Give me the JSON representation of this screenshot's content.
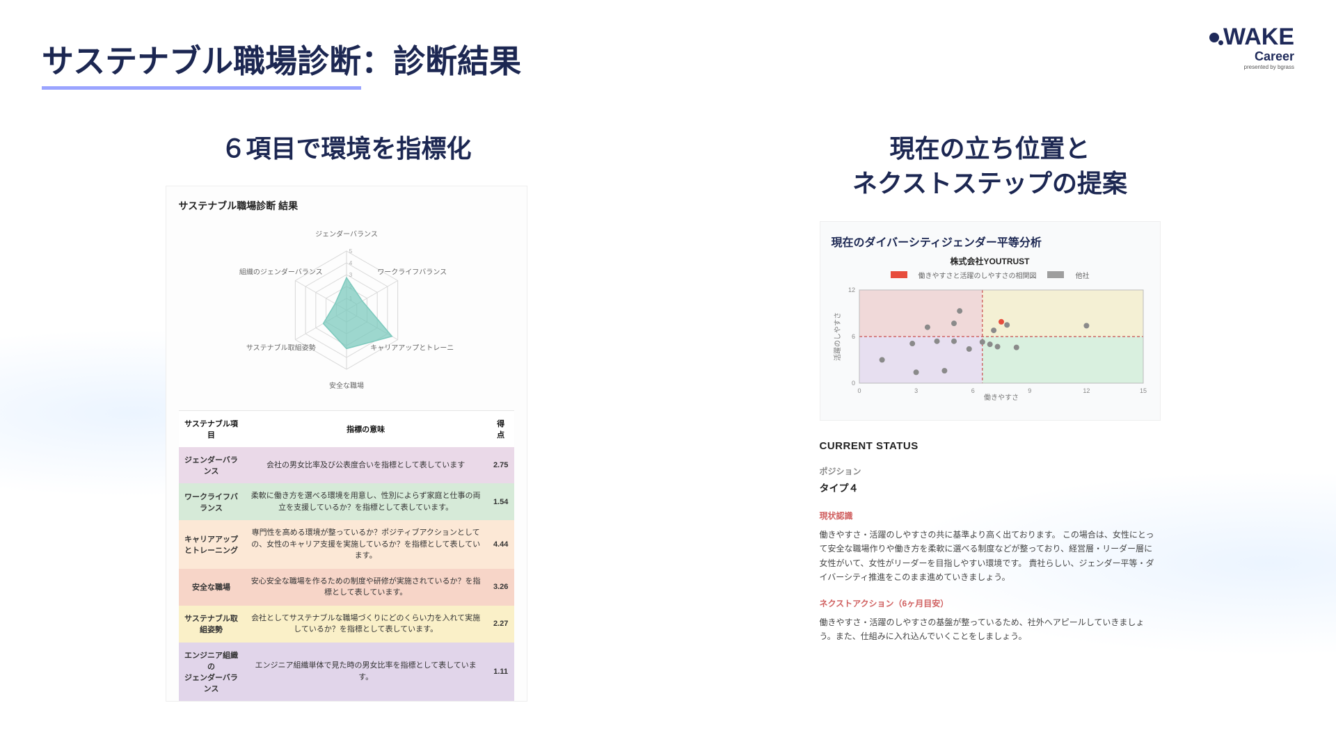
{
  "logo": {
    "main": "WAKE",
    "sub": "Career",
    "tiny": "presented by bgrass"
  },
  "title": {
    "highlight": "サステナブル職場診断",
    "rest": "：診断結果"
  },
  "left": {
    "heading": "６項目で環境を指標化",
    "card_title": "サステナブル職場診断 結果",
    "radar": {
      "axes": [
        "ジェンダーバランス",
        "ワークライフバランス",
        "キャリアアップとトレーニ",
        "安全な職場",
        "サステナブル取組姿勢",
        "組織のジェンダーバランス"
      ],
      "max": 5,
      "ticks": [
        1,
        2,
        3,
        4,
        5
      ],
      "values": [
        2.75,
        1.54,
        4.44,
        3.26,
        2.27,
        1.11
      ],
      "fill": "#7cc9bd",
      "fill_opacity": 0.75,
      "grid_color": "#d8d8d8",
      "label_color": "#666666"
    },
    "table": {
      "columns": [
        "サステナブル項目",
        "指標の意味",
        "得点"
      ],
      "rows": [
        {
          "name": "ジェンダーバランス",
          "desc": "会社の男女比率及び公表度合いを指標として表しています",
          "score": "2.75",
          "bg": "#ead9e8"
        },
        {
          "name": "ワークライフバランス",
          "desc": "柔軟に働き方を選べる環境を用意し、性別によらず家庭と仕事の両立を支援しているか？を指標として表しています。",
          "score": "1.54",
          "bg": "#d6ead8"
        },
        {
          "name": "キャリアアップとトレーニング",
          "desc": "専門性を高める環境が整っているか？ポジティブアクションとしての、女性のキャリア支援を実施しているか？を指標として表しています。",
          "score": "4.44",
          "bg": "#fce8d6"
        },
        {
          "name": "安全な職場",
          "desc": "安心安全な職場を作るための制度や研修が実施されているか？を指標として表しています。",
          "score": "3.26",
          "bg": "#f7d5c8"
        },
        {
          "name": "サステナブル取組姿勢",
          "desc": "会社としてサステナブルな職場づくりにどのくらい力を入れて実施しているか？を指標として表しています。",
          "score": "2.27",
          "bg": "#faf0c8"
        },
        {
          "name": "エンジニア組織の\nジェンダーバランス",
          "desc": "エンジニア組織単体で見た時の男女比率を指標として表しています。",
          "score": "1.11",
          "bg": "#e1d5ea"
        }
      ]
    }
  },
  "right": {
    "heading": "現在の立ち位置と\nネクストステップの提案",
    "card_title": "現在のダイバーシティジェンダー平等分析",
    "subtitle": "株式会社YOUTRUST",
    "legend": {
      "a_label": "働きやすさと活躍のしやすさの相関図",
      "a_color": "#e74c3c",
      "b_label": "他社",
      "b_color": "#9e9e9e"
    },
    "scatter": {
      "xlim": [
        0,
        15
      ],
      "ylim": [
        0,
        12
      ],
      "xticks": [
        0,
        3,
        6,
        9,
        12,
        15
      ],
      "yticks": [
        0,
        6,
        12
      ],
      "xlabel": "働きやすさ",
      "ylabel": "活躍のしやすさ",
      "split_x": 6.5,
      "split_y": 6,
      "quad_colors": {
        "bl": "#e7dff0",
        "tl": "#f0d9d9",
        "br": "#d9f0df",
        "tr": "#f4f0d4"
      },
      "grid_color": "#dddddd",
      "points_other_color": "#8a8a8a",
      "points_self_color": "#e74c3c",
      "points_other": [
        [
          1.2,
          3.0
        ],
        [
          2.8,
          5.1
        ],
        [
          3.0,
          1.4
        ],
        [
          3.6,
          7.2
        ],
        [
          4.1,
          5.4
        ],
        [
          4.5,
          1.6
        ],
        [
          5.0,
          7.7
        ],
        [
          5.3,
          9.3
        ],
        [
          5.0,
          5.4
        ],
        [
          5.8,
          4.4
        ],
        [
          6.5,
          5.3
        ],
        [
          6.9,
          5.0
        ],
        [
          7.1,
          6.8
        ],
        [
          7.3,
          4.7
        ],
        [
          7.8,
          7.5
        ],
        [
          8.3,
          4.6
        ],
        [
          12.0,
          7.4
        ]
      ],
      "points_self": [
        [
          7.5,
          7.9
        ]
      ]
    },
    "status": {
      "heading": "CURRENT STATUS",
      "position_label": "ポジション",
      "position_value": "タイプ４",
      "recog_label": "現状認識",
      "recog_body": "働きやすさ・活躍のしやすさの共に基準より高く出ております。 この場合は、女性にとって安全な職場作りや働き方を柔軟に選べる制度などが整っており、経営層・リーダー層に女性がいて、女性がリーダーを目指しやすい環境です。 貴社らしい、ジェンダー平等・ダイバーシティ推進をこのまま進めていきましょう。",
      "next_label": "ネクストアクション（6ヶ月目安）",
      "next_body": "働きやすさ・活躍のしやすさの基盤が整っているため、社外へアピールしていきましょう。また、仕組みに入れ込んでいくことをしましょう。"
    }
  }
}
